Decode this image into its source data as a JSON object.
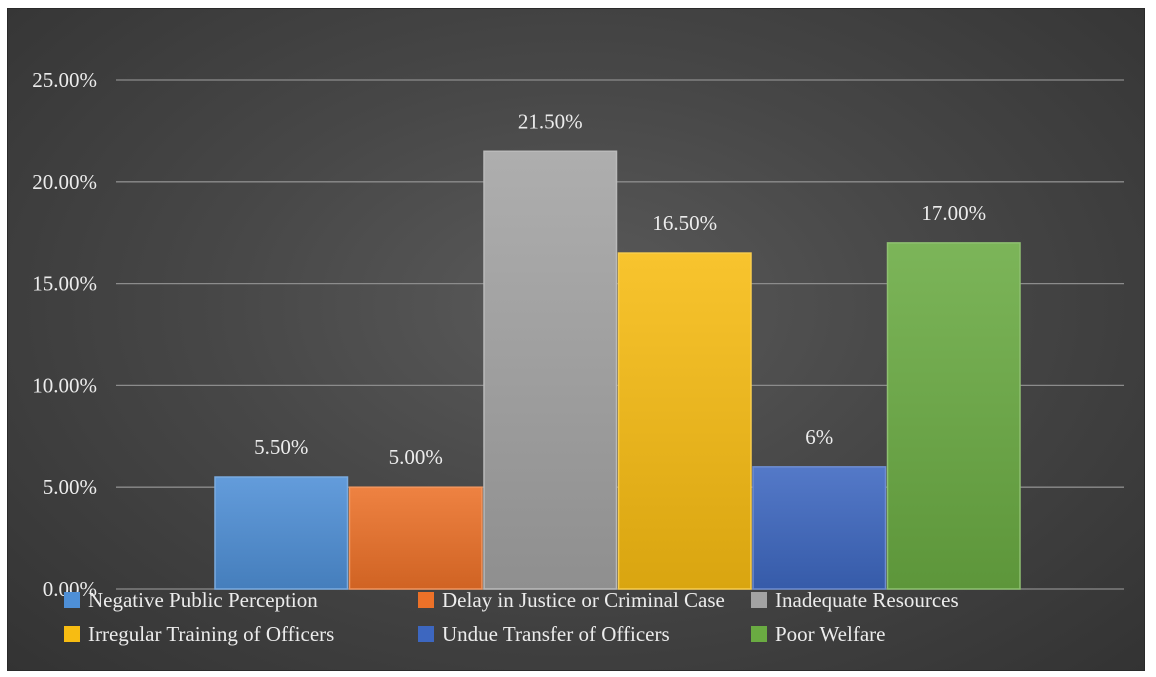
{
  "chart_data": {
    "type": "bar",
    "title": "",
    "xlabel": "",
    "ylabel": "",
    "ylim": [
      0,
      25
    ],
    "y_ticks": [
      "0.00%",
      "5.00%",
      "10.00%",
      "15.00%",
      "20.00%",
      "25.00%"
    ],
    "grid": true,
    "legend_position": "bottom",
    "series": [
      {
        "name": "Negative Public Perception",
        "value": 5.5,
        "label": "5.50%",
        "color": "#4e8fd6"
      },
      {
        "name": "Delay in Justice or Criminal Case",
        "value": 5.0,
        "label": "5.00%",
        "color": "#ec7128"
      },
      {
        "name": "Inadequate Resources",
        "value": 21.5,
        "label": "21.50%",
        "color": "#a3a3a3"
      },
      {
        "name": "Irregular Training of Officers",
        "value": 16.5,
        "label": "16.50%",
        "color": "#f7bc12"
      },
      {
        "name": "Undue Transfer of Officers",
        "value": 6.0,
        "label": "6%",
        "color": "#3d67c0"
      },
      {
        "name": "Poor Welfare",
        "value": 17.0,
        "label": "17.00%",
        "color": "#6aab42"
      }
    ]
  }
}
